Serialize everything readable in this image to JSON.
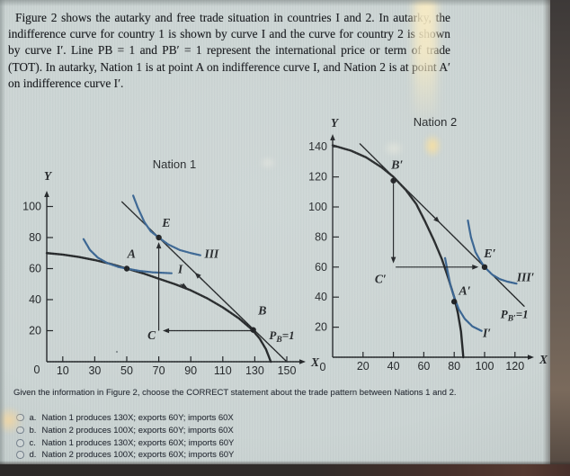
{
  "question": {
    "paragraph": "Figure 2 shows the autarky and free trade situation in countries I and 2. In autarky, the indifference curve for country 1 is shown by curve I and the curve for country 2 is shown by curve I′. Line PB = 1 and PB′ = 1 represent the international price or term of trade (TOT). In autarky, Nation 1 is at point A on indifference curve I, and Nation 2 is at point A′ on indifference curve I′.",
    "prompt": "Given the information in Figure 2, choose the CORRECT statement about the trade pattern between Nations 1 and 2.",
    "options": [
      {
        "key": "a.",
        "label": "Nation 1 produces 130X; exports 60Y; imports 60X",
        "selected": false
      },
      {
        "key": "b.",
        "label": "Nation 2 produces 100X; exports 60Y; imports 60X",
        "selected": false
      },
      {
        "key": "c.",
        "label": "Nation 1 produces 130X; exports 60X; imports 60Y",
        "selected": false
      },
      {
        "key": "d.",
        "label": "Nation 2 produces 100X; exports 60X; imports 60Y",
        "selected": false
      }
    ]
  },
  "colors": {
    "background": "#cbd4d3",
    "ink": "#1d2023",
    "indifference_blue": "#33608f",
    "bezel_dark": "#3d3938"
  },
  "chart_data": [
    {
      "type": "line",
      "title": "Nation 1",
      "xlabel": "X",
      "ylabel": "Y",
      "origin_label": "0",
      "xlim": [
        0,
        160
      ],
      "ylim": [
        0,
        115
      ],
      "grid": false,
      "x_ticks": [
        10,
        30,
        50,
        70,
        90,
        110,
        130,
        150
      ],
      "y_ticks": [
        20,
        40,
        60,
        80,
        100
      ],
      "series": [
        {
          "name": "ppf-nation-1",
          "color": "#1f2224",
          "width": 2.4,
          "points": [
            [
              0,
              70
            ],
            [
              10,
              69
            ],
            [
              20,
              67.5
            ],
            [
              30,
              65.5
            ],
            [
              40,
              63
            ],
            [
              50,
              60
            ],
            [
              60,
              57
            ],
            [
              70,
              53.5
            ],
            [
              80,
              50
            ],
            [
              90,
              46
            ],
            [
              100,
              41
            ],
            [
              110,
              35
            ],
            [
              120,
              28
            ],
            [
              128,
              21
            ],
            [
              133,
              15
            ],
            [
              137,
              8
            ],
            [
              140,
              0
            ]
          ]
        },
        {
          "name": "price-line-pb1",
          "color": "#1f2224",
          "width": 1.4,
          "points": [
            [
              47,
              103
            ],
            [
              150,
              0
            ]
          ]
        },
        {
          "name": "indifference-curve-I",
          "color": "#33608f",
          "width": 2.2,
          "points": [
            [
              23,
              79
            ],
            [
              27,
              72
            ],
            [
              32,
              67
            ],
            [
              38,
              63.5
            ],
            [
              45,
              61
            ],
            [
              50,
              60
            ],
            [
              58,
              58.5
            ],
            [
              66,
              57.6
            ],
            [
              78,
              57
            ]
          ]
        },
        {
          "name": "indifference-curve-III",
          "color": "#33608f",
          "width": 2.2,
          "points": [
            [
              54,
              107
            ],
            [
              57,
              99
            ],
            [
              61,
              90
            ],
            [
              65,
              84
            ],
            [
              70,
              80
            ],
            [
              76,
              75.5
            ],
            [
              83,
              72
            ],
            [
              90,
              70
            ],
            [
              96,
              68.6
            ]
          ]
        }
      ],
      "markers": [
        {
          "label": "A",
          "x": 50,
          "y": 60,
          "lx": 53,
          "ly": 67
        },
        {
          "label": "E",
          "x": 70,
          "y": 80,
          "lx": 74.7,
          "ly": 87
        },
        {
          "label": "B",
          "x": 129,
          "y": 20.5,
          "lx": 134.7,
          "ly": 30.5
        }
      ],
      "arrows": [
        {
          "name": "consumption-rise-arrow",
          "from": [
            70,
            20
          ],
          "to": [
            70,
            77
          ]
        },
        {
          "name": "export-x-arrow",
          "from": [
            128,
            20
          ],
          "to": [
            72.5,
            20
          ]
        },
        {
          "name": "price-line-direction-arrow",
          "from": [
            97.5,
            52.5
          ],
          "to": [
            92.5,
            57.5
          ]
        },
        {
          "name": "ppf-direction-arrow",
          "from": [
            83.5,
            50
          ],
          "to": [
            88,
            47.3
          ]
        }
      ],
      "labels": [
        {
          "text": "C",
          "x": 65.5,
          "y": 14.5
        },
        {
          "text": "I",
          "x": 83.5,
          "y": 57
        },
        {
          "text": "III",
          "x": 103,
          "y": 67
        },
        {
          "pre": "P",
          "sub": "B",
          "post": "=1",
          "x": 139,
          "y": 14.5
        }
      ]
    },
    {
      "type": "line",
      "title": "Nation 2",
      "xlabel": "X",
      "ylabel": "Y",
      "origin_label": "0",
      "xlim": [
        0,
        135
      ],
      "ylim": [
        0,
        150
      ],
      "grid": false,
      "x_ticks": [
        20,
        40,
        60,
        80,
        100,
        120
      ],
      "y_ticks": [
        20,
        40,
        60,
        80,
        100,
        120,
        140
      ],
      "series": [
        {
          "name": "ppf-nation-2",
          "color": "#1f2224",
          "width": 2.4,
          "points": [
            [
              0,
              141
            ],
            [
              12,
              137.5
            ],
            [
              22,
              133
            ],
            [
              32,
              126.5
            ],
            [
              40,
              120
            ],
            [
              48,
              111.5
            ],
            [
              55,
              102
            ],
            [
              61,
              90
            ],
            [
              67,
              77
            ],
            [
              72,
              65
            ],
            [
              76,
              53
            ],
            [
              80,
              40
            ],
            [
              82.5,
              29
            ],
            [
              84.5,
              17
            ],
            [
              86,
              0
            ]
          ]
        },
        {
          "name": "price-line-pb-prime-1",
          "color": "#1f2224",
          "width": 1.4,
          "points": [
            [
              18,
              142
            ],
            [
              126,
              34
            ]
          ]
        },
        {
          "name": "indifference-curve-I-prime",
          "color": "#33608f",
          "width": 2.2,
          "points": [
            [
              74,
              66
            ],
            [
              75.5,
              58
            ],
            [
              77.5,
              48
            ],
            [
              80,
              40
            ],
            [
              83,
              32
            ],
            [
              87,
              25.5
            ],
            [
              92,
              20.5
            ],
            [
              98,
              17.5
            ]
          ]
        },
        {
          "name": "indifference-curve-III-prime",
          "color": "#33608f",
          "width": 2.2,
          "points": [
            [
              89,
              91
            ],
            [
              91,
              80
            ],
            [
              94,
              70
            ],
            [
              97,
              64.5
            ],
            [
              100,
              60
            ],
            [
              105,
              55
            ],
            [
              110,
              52
            ],
            [
              115,
              50.3
            ],
            [
              121,
              49
            ]
          ]
        }
      ],
      "markers": [
        {
          "label": "B′",
          "x": 40,
          "y": 117.5,
          "lx": 42.5,
          "ly": 125.5
        },
        {
          "label": "E′",
          "x": 100,
          "y": 60,
          "lx": 103.5,
          "ly": 66.5
        },
        {
          "label": "A′",
          "x": 80,
          "y": 37,
          "lx": 87,
          "ly": 41.5
        }
      ],
      "arrows": [
        {
          "name": "export-y-arrow",
          "from": [
            40,
            115.5
          ],
          "to": [
            40,
            62.5
          ]
        },
        {
          "name": "import-x-arrow",
          "from": [
            41.5,
            60
          ],
          "to": [
            96,
            60
          ]
        },
        {
          "name": "price-line-direction-arrow",
          "from": [
            65.5,
            94.5
          ],
          "to": [
            70.5,
            89.5
          ]
        }
      ],
      "labels": [
        {
          "text": "C′",
          "x": 31.5,
          "y": 49.5
        },
        {
          "text": "I′",
          "x": 101.5,
          "y": 13.5
        },
        {
          "text": "III′",
          "x": 127,
          "y": 50.5
        },
        {
          "pre": "P",
          "sub": "B′",
          "post": "=1",
          "x": 110.5,
          "y": 26
        }
      ]
    }
  ]
}
